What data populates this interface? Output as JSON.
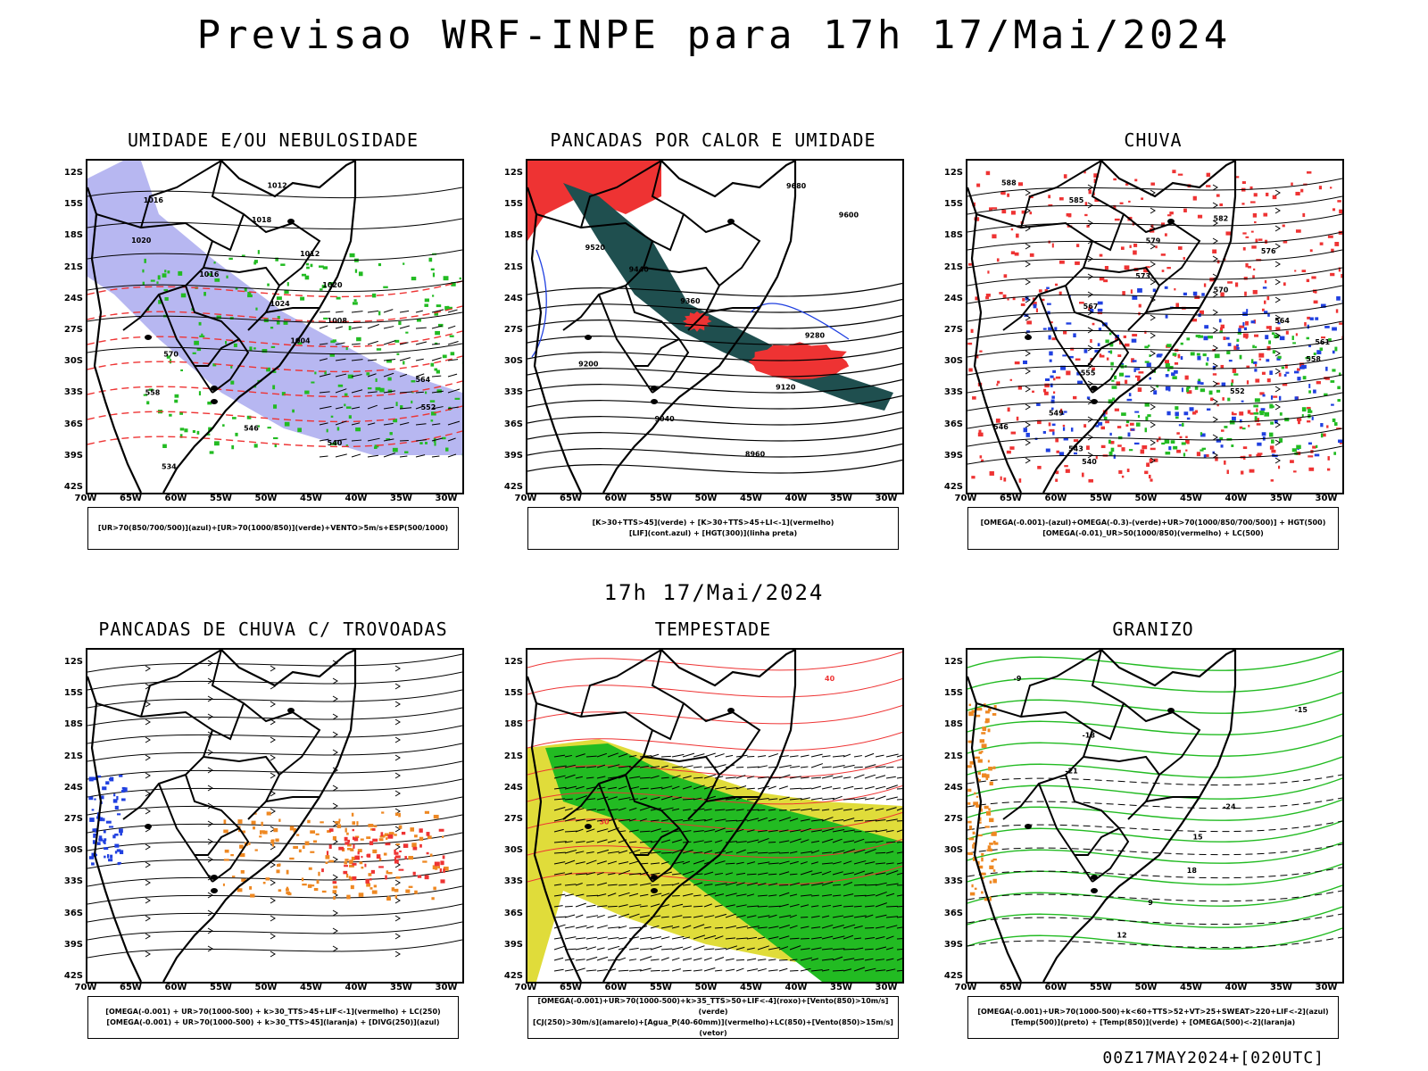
{
  "main_title": "Previsao WRF-INPE  para 17h 17/Mai/2024",
  "mid_title": "17h 17/Mai/2024",
  "footer": "00Z17MAY2024+[020UTC]",
  "lat_labels": [
    "12S",
    "15S",
    "18S",
    "21S",
    "24S",
    "27S",
    "30S",
    "33S",
    "36S",
    "39S",
    "42S"
  ],
  "lon_labels": [
    "70W",
    "65W",
    "60W",
    "55W",
    "50W",
    "45W",
    "40W",
    "35W",
    "30W"
  ],
  "colors": {
    "blue": "#2040e0",
    "lavender": "#aaaaee",
    "green": "#22bb22",
    "red": "#ee3333",
    "darkteal": "#1f4f4f",
    "yellow": "#e0dc3a",
    "orange": "#ee8822",
    "black": "#000000"
  },
  "panels": [
    {
      "title": "UMIDADE E/OU NEBULOSIDADE",
      "legend": [
        "[UR>70(850/700/500)](azul)+[UR>70(1000/850)](verde)+VENTO>5m/s+ESP(500/1000)"
      ],
      "contour_labels": [
        "1012",
        "1016",
        "1018",
        "1020",
        "1012",
        "1016",
        "1020",
        "1024",
        "1008",
        "1004",
        "570",
        "564",
        "558",
        "552",
        "546",
        "540",
        "534"
      ]
    },
    {
      "title": "PANCADAS POR CALOR E UMIDADE",
      "legend": [
        "[K>30+TTS>45](verde) + [K>30+TTS>45+LI<-1](vermelho)",
        "[LIF](cont.azul) + [HGT(300)](linha preta)"
      ],
      "contour_labels": [
        "9680",
        "9600",
        "9520",
        "9440",
        "9360",
        "9280",
        "9200",
        "9120",
        "9040",
        "8960"
      ]
    },
    {
      "title": "CHUVA",
      "legend": [
        "[OMEGA(-0.001)-(azul)+OMEGA(-0.3)-(verde)+UR>70(1000/850/700/500)] + HGT(500)",
        "[OMEGA(-0.01)_UR>50(1000/850)(vermelho) + LC(500)"
      ],
      "contour_labels": [
        "588",
        "585",
        "582",
        "579",
        "576",
        "573",
        "570",
        "567",
        "564",
        "561",
        "558",
        "555",
        "552",
        "549",
        "546",
        "543",
        "540"
      ]
    },
    {
      "title": "PANCADAS DE CHUVA C/ TROVOADAS",
      "legend": [
        "[OMEGA(-0.001) + UR>70(1000-500) + k>30_TTS>45+LIF<-1](vermelho) + LC(250)",
        "[OMEGA(-0.001) + UR>70(1000-500) + k>30_TTS>45](laranja) + [DIVG(250)](azul)"
      ],
      "contour_labels": []
    },
    {
      "title": "TEMPESTADE",
      "legend": [
        "[OMEGA(-0.001)+UR>70(1000-500)+k>35_TTS>50+LIF<-4](roxo)+[Vento(850)>10m/s](verde)",
        "[CJ(250)>30m/s](amarelo)+[Agua_P(40-60mm)](vermelho)+LC(850)+[Vento(850)>15m/s](vetor)"
      ],
      "contour_labels": [
        "40",
        "30"
      ]
    },
    {
      "title": "GRANIZO",
      "legend": [
        "[OMEGA(-0.001)+UR>70(1000-500)+k<60+TTS>52+VT>25+SWEAT>220+LIF<-2](azul)",
        "[Temp(500)](preto) + [Temp(850)](verde) + [OMEGA(500)<-2](laranja)"
      ],
      "contour_labels": [
        "-9",
        "-15",
        "-18",
        "-21",
        "-24",
        "15",
        "18",
        "9",
        "12"
      ]
    }
  ]
}
